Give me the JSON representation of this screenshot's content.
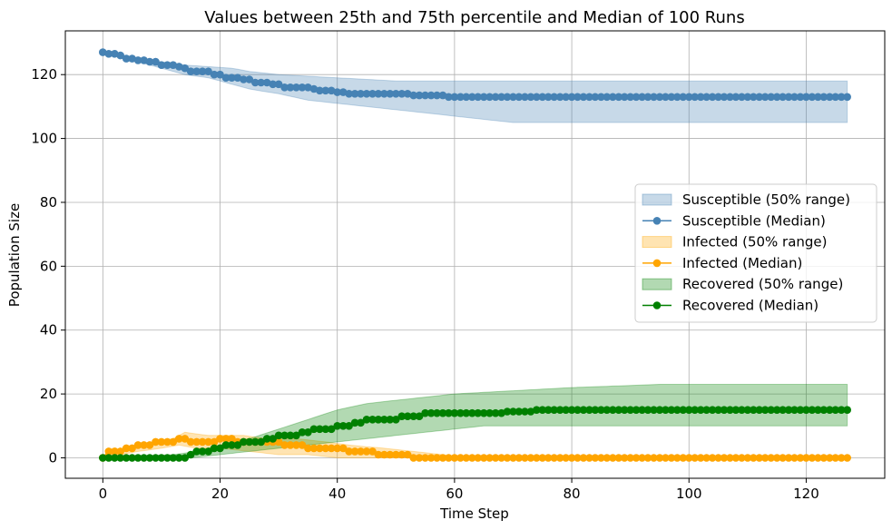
{
  "chart_data": {
    "type": "line",
    "title": "Values between 25th and 75th percentile and Median of 100 Runs",
    "xlabel": "Time Step",
    "ylabel": "Population Size",
    "xlim": [
      -6.4,
      133.4
    ],
    "ylim": [
      -6.4,
      133.7
    ],
    "xticks": [
      0,
      20,
      40,
      60,
      80,
      100,
      120
    ],
    "yticks": [
      0,
      20,
      40,
      60,
      80,
      100,
      120
    ],
    "grid": true,
    "legend_position": "center-right",
    "legend": [
      {
        "label": "Susceptible (50% range)",
        "kind": "band",
        "color": "#4682b4"
      },
      {
        "label": "Susceptible (Median)",
        "kind": "line",
        "color": "#4682b4"
      },
      {
        "label": "Infected (50% range)",
        "kind": "band",
        "color": "#ffa500"
      },
      {
        "label": "Infected (Median)",
        "kind": "line",
        "color": "#ffa500"
      },
      {
        "label": "Recovered (50% range)",
        "kind": "band",
        "color": "#008000"
      },
      {
        "label": "Recovered (Median)",
        "kind": "line",
        "color": "#008000"
      }
    ],
    "series": [
      {
        "name": "Susceptible",
        "color": "#4682b4",
        "median": [
          [
            0,
            127
          ],
          [
            1,
            126.5
          ],
          [
            3,
            126
          ],
          [
            4,
            125
          ],
          [
            6,
            124.5
          ],
          [
            8,
            124
          ],
          [
            10,
            123
          ],
          [
            13,
            122.5
          ],
          [
            14,
            122
          ],
          [
            15,
            121
          ],
          [
            18,
            121
          ],
          [
            19,
            120
          ],
          [
            21,
            119
          ],
          [
            24,
            118.5
          ],
          [
            26,
            117.5
          ],
          [
            29,
            117
          ],
          [
            31,
            116
          ],
          [
            36,
            115.5
          ],
          [
            37,
            115
          ],
          [
            40,
            114.5
          ],
          [
            42,
            114
          ],
          [
            52,
            114
          ],
          [
            53,
            113.5
          ],
          [
            59,
            113
          ],
          [
            127,
            113
          ]
        ],
        "p25": [
          [
            0,
            127
          ],
          [
            6,
            124
          ],
          [
            10,
            122
          ],
          [
            14,
            120
          ],
          [
            18,
            119
          ],
          [
            22,
            117
          ],
          [
            25,
            115.5
          ],
          [
            30,
            114
          ],
          [
            35,
            112
          ],
          [
            40,
            111
          ],
          [
            45,
            110
          ],
          [
            50,
            109
          ],
          [
            55,
            108
          ],
          [
            60,
            107
          ],
          [
            65,
            106
          ],
          [
            70,
            105
          ],
          [
            127,
            105
          ]
        ],
        "p75": [
          [
            0,
            127
          ],
          [
            6,
            125
          ],
          [
            10,
            124
          ],
          [
            14,
            123
          ],
          [
            18,
            122.5
          ],
          [
            22,
            122
          ],
          [
            25,
            121
          ],
          [
            30,
            120
          ],
          [
            35,
            119.5
          ],
          [
            40,
            119
          ],
          [
            45,
            118.5
          ],
          [
            50,
            118
          ],
          [
            127,
            118
          ]
        ]
      },
      {
        "name": "Infected",
        "color": "#ffa500",
        "median": [
          [
            0,
            0
          ],
          [
            1,
            2
          ],
          [
            4,
            3
          ],
          [
            6,
            4
          ],
          [
            9,
            5
          ],
          [
            13,
            6
          ],
          [
            15,
            5
          ],
          [
            19,
            5
          ],
          [
            20,
            6
          ],
          [
            23,
            5
          ],
          [
            31,
            4
          ],
          [
            35,
            3
          ],
          [
            42,
            2
          ],
          [
            47,
            1
          ],
          [
            53,
            0
          ],
          [
            127,
            0
          ]
        ],
        "p25": [
          [
            0,
            0
          ],
          [
            3,
            1
          ],
          [
            6,
            2
          ],
          [
            10,
            3
          ],
          [
            13,
            4
          ],
          [
            16,
            3
          ],
          [
            20,
            3
          ],
          [
            25,
            2
          ],
          [
            30,
            1
          ],
          [
            35,
            1
          ],
          [
            40,
            0
          ],
          [
            127,
            0
          ]
        ],
        "p75": [
          [
            0,
            1
          ],
          [
            3,
            2
          ],
          [
            6,
            4
          ],
          [
            9,
            5
          ],
          [
            12,
            6
          ],
          [
            14,
            8
          ],
          [
            18,
            7
          ],
          [
            24,
            7
          ],
          [
            28,
            6
          ],
          [
            33,
            6
          ],
          [
            38,
            5
          ],
          [
            42,
            4
          ],
          [
            48,
            3
          ],
          [
            53,
            2
          ],
          [
            58,
            1
          ],
          [
            62,
            0
          ],
          [
            127,
            0
          ]
        ]
      },
      {
        "name": "Recovered",
        "color": "#008000",
        "median": [
          [
            0,
            0
          ],
          [
            14,
            0
          ],
          [
            15,
            1
          ],
          [
            16,
            2
          ],
          [
            19,
            3
          ],
          [
            21,
            4
          ],
          [
            24,
            5
          ],
          [
            28,
            6
          ],
          [
            30,
            7
          ],
          [
            34,
            8
          ],
          [
            36,
            9
          ],
          [
            40,
            10
          ],
          [
            43,
            11
          ],
          [
            45,
            12
          ],
          [
            51,
            13
          ],
          [
            55,
            14
          ],
          [
            68,
            14
          ],
          [
            69,
            14.5
          ],
          [
            73,
            14.5
          ],
          [
            74,
            15
          ],
          [
            127,
            15
          ]
        ],
        "p25": [
          [
            0,
            0
          ],
          [
            15,
            0
          ],
          [
            20,
            1
          ],
          [
            25,
            2
          ],
          [
            30,
            3
          ],
          [
            35,
            4
          ],
          [
            40,
            5
          ],
          [
            45,
            6
          ],
          [
            50,
            7
          ],
          [
            55,
            8
          ],
          [
            60,
            9
          ],
          [
            65,
            10
          ],
          [
            127,
            10
          ]
        ],
        "p75": [
          [
            0,
            0
          ],
          [
            12,
            1
          ],
          [
            16,
            2
          ],
          [
            20,
            4
          ],
          [
            25,
            6
          ],
          [
            30,
            9
          ],
          [
            35,
            12
          ],
          [
            40,
            15
          ],
          [
            45,
            17
          ],
          [
            50,
            18
          ],
          [
            55,
            19
          ],
          [
            60,
            20
          ],
          [
            70,
            21
          ],
          [
            80,
            22
          ],
          [
            95,
            23
          ],
          [
            127,
            23
          ]
        ]
      }
    ]
  }
}
